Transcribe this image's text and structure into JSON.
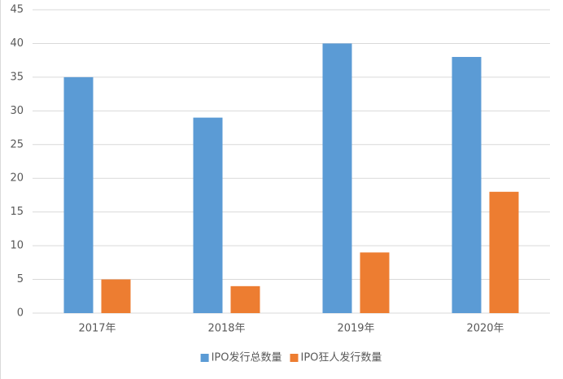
{
  "chart_data": {
    "type": "bar",
    "categories": [
      "2017年",
      "2018年",
      "2019年",
      "2020年"
    ],
    "series": [
      {
        "name": "IPO发行总数量",
        "color": "#5b9bd5",
        "values": [
          35,
          29,
          40,
          38
        ]
      },
      {
        "name": "IPO狂人发行数量",
        "color": "#ed7d31",
        "values": [
          5,
          4,
          9,
          18
        ]
      }
    ],
    "ylim": [
      0,
      45
    ],
    "yticks": [
      0,
      5,
      10,
      15,
      20,
      25,
      30,
      35,
      40,
      45
    ],
    "grid": true,
    "legend": "bottom"
  }
}
